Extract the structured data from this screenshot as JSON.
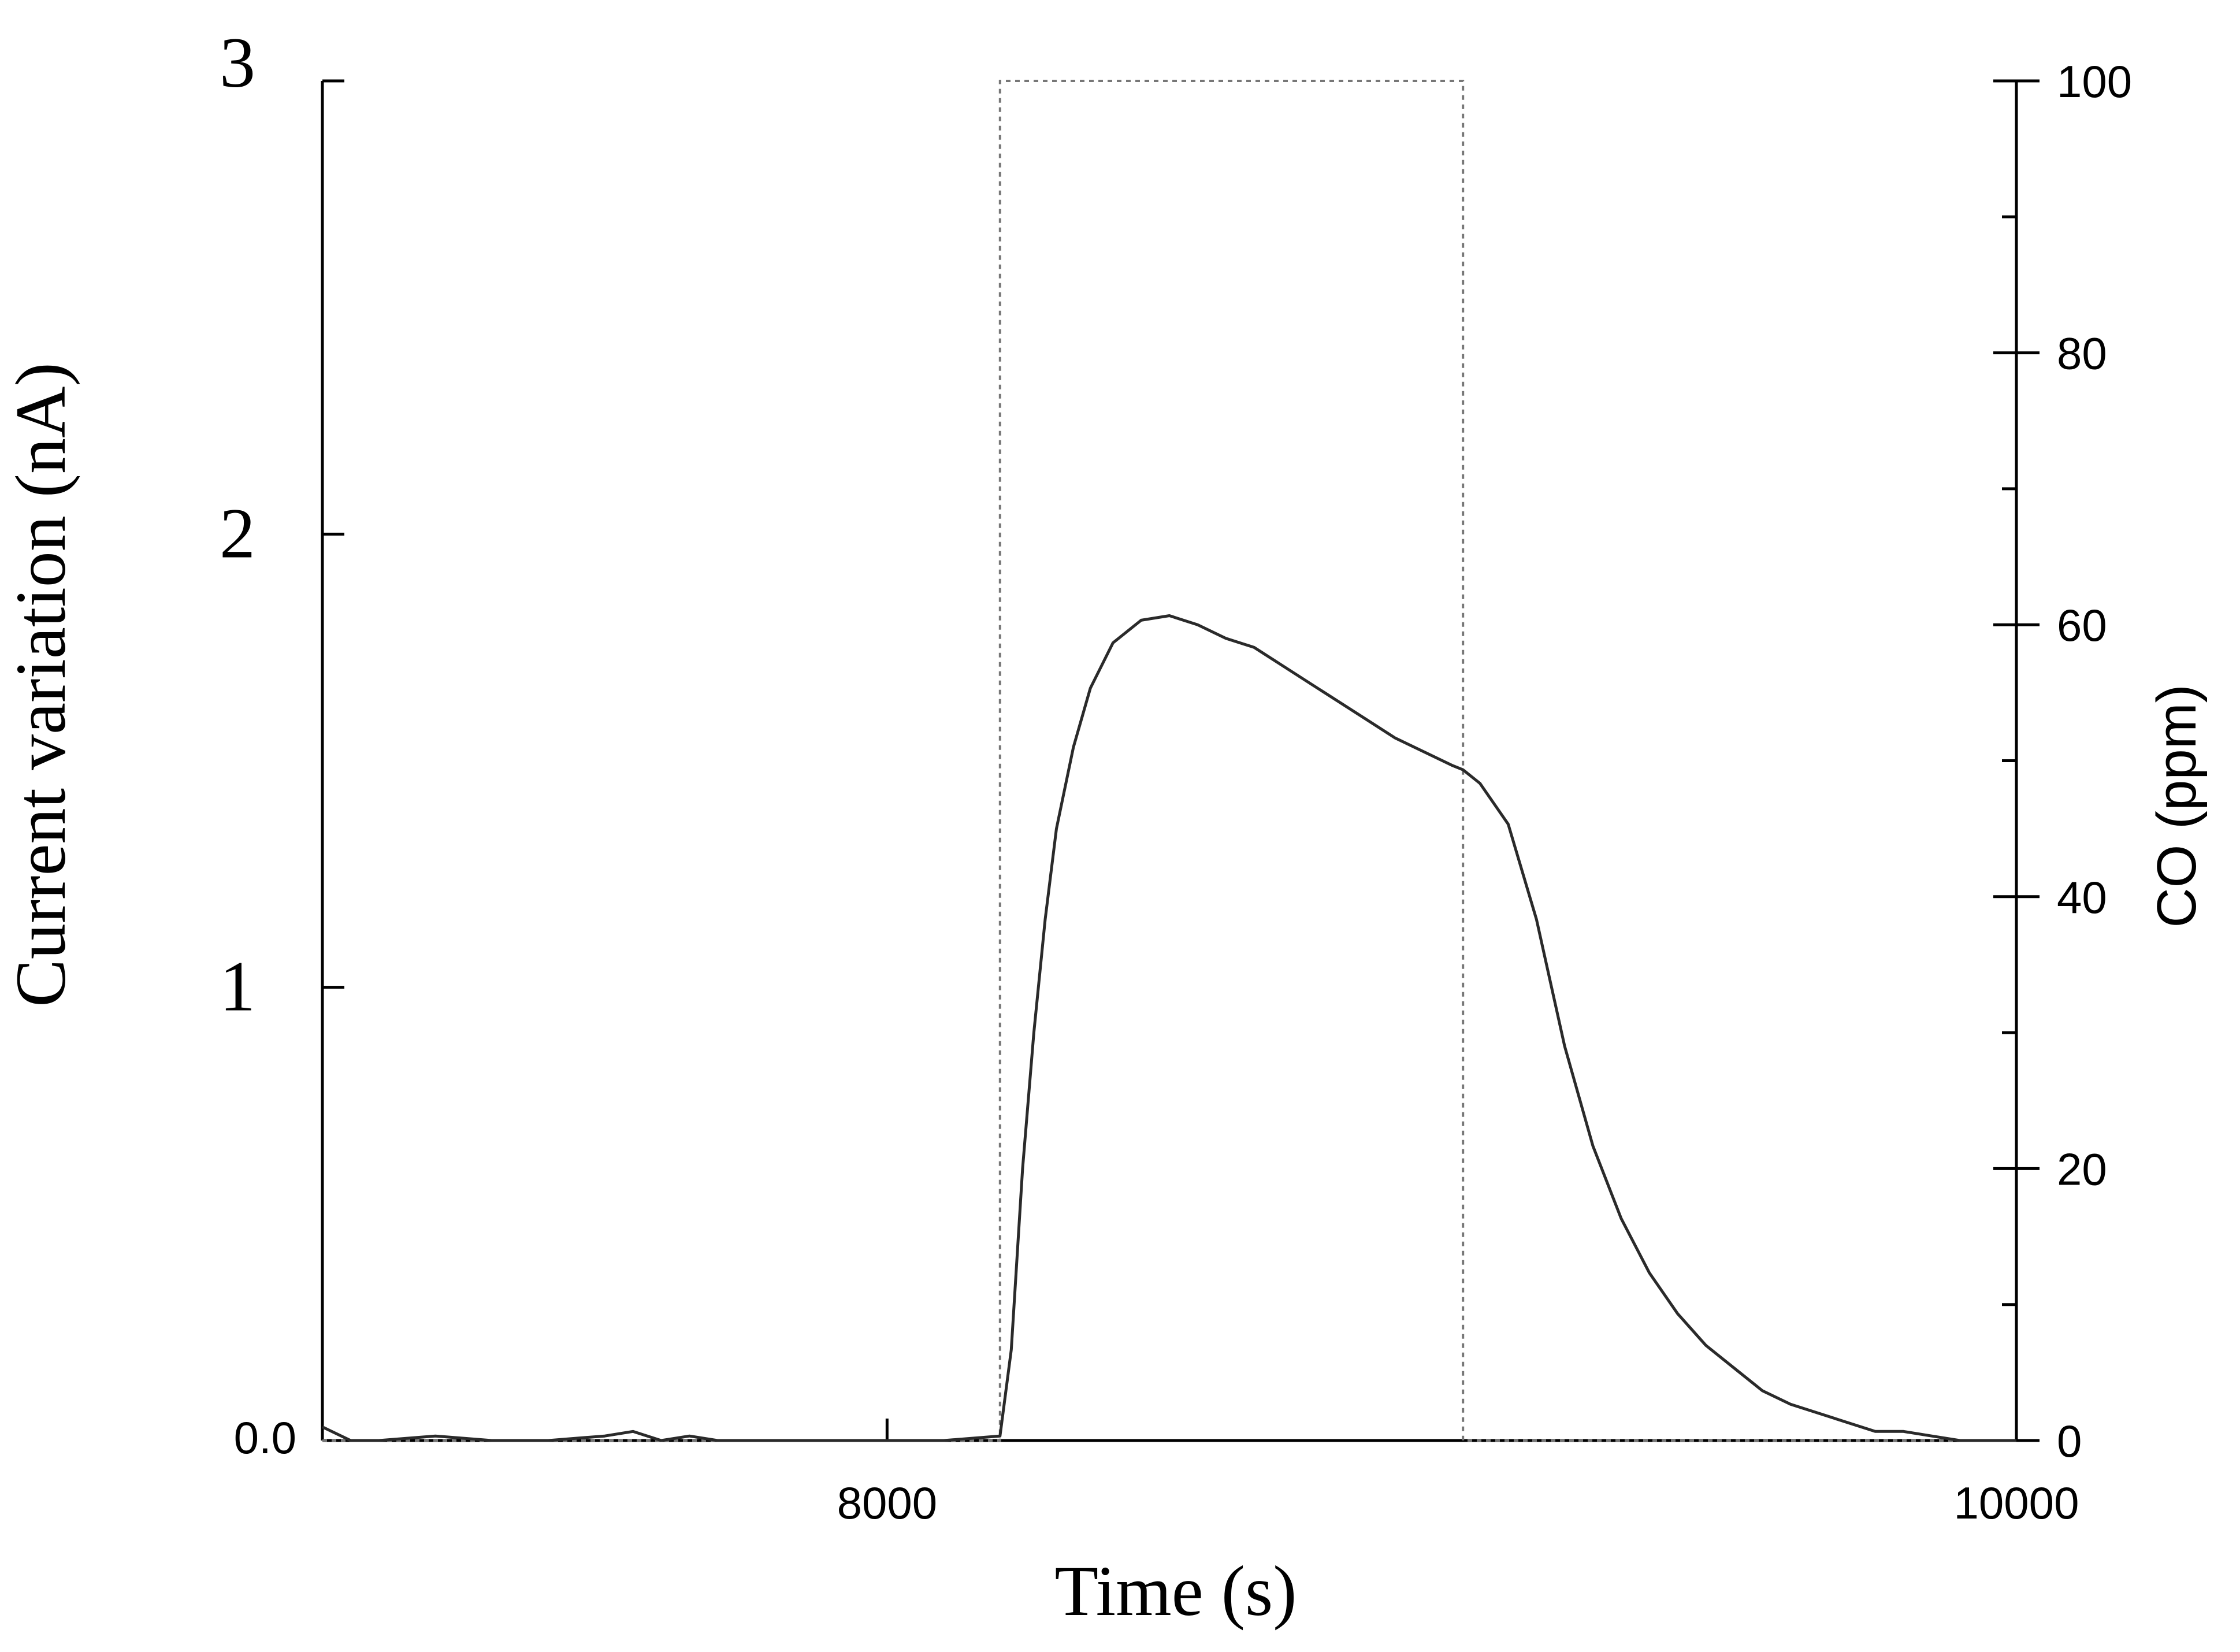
{
  "chart_data": {
    "type": "line",
    "title": "",
    "xlabel": "Time (s)",
    "ylabel_left": "Current variation (nA)",
    "ylabel_right": "CO (ppm)",
    "xlim": [
      7000,
      10000
    ],
    "ylim_left": [
      0,
      3
    ],
    "ylim_right": [
      0,
      100
    ],
    "x_ticks": [
      8000,
      10000
    ],
    "x_tick_labels": [
      "8000",
      "10000"
    ],
    "left_ticks": [
      0,
      1,
      2,
      3
    ],
    "left_tick_labels": [
      "0.0",
      "1",
      "2",
      "3"
    ],
    "right_major_ticks": [
      0,
      20,
      40,
      60,
      80,
      100
    ],
    "right_tick_labels": [
      "0",
      "20",
      "40",
      "60",
      "80",
      "100"
    ],
    "right_minor_ticks": [
      10,
      30,
      50,
      70,
      90
    ],
    "grid": false,
    "legend": "none",
    "series": [
      {
        "axis": "left",
        "style": "solid",
        "color": "#2a2a2a",
        "x": [
          7000,
          7050,
          7100,
          7200,
          7300,
          7400,
          7500,
          7550,
          7600,
          7650,
          7700,
          7800,
          7900,
          8000,
          8100,
          8200,
          8220,
          8240,
          8260,
          8280,
          8300,
          8330,
          8360,
          8400,
          8450,
          8500,
          8550,
          8600,
          8650,
          8700,
          8750,
          8800,
          8850,
          8900,
          8950,
          9000,
          9020,
          9050,
          9100,
          9150,
          9200,
          9250,
          9300,
          9350,
          9400,
          9450,
          9500,
          9550,
          9600,
          9650,
          9700,
          9750,
          9800,
          9850,
          9900,
          9950,
          10000
        ],
        "y": [
          0.03,
          0.0,
          0.0,
          0.01,
          0.0,
          0.0,
          0.01,
          0.02,
          0.0,
          0.01,
          0.0,
          0.0,
          0.0,
          0.0,
          0.0,
          0.01,
          0.2,
          0.6,
          0.9,
          1.15,
          1.35,
          1.53,
          1.66,
          1.76,
          1.81,
          1.82,
          1.8,
          1.77,
          1.75,
          1.71,
          1.67,
          1.63,
          1.59,
          1.55,
          1.52,
          1.49,
          1.48,
          1.45,
          1.36,
          1.15,
          0.87,
          0.65,
          0.49,
          0.37,
          0.28,
          0.21,
          0.16,
          0.11,
          0.08,
          0.06,
          0.04,
          0.02,
          0.02,
          0.01,
          0.0,
          0.0,
          0.0
        ]
      },
      {
        "axis": "right",
        "style": "dotted",
        "color": "#777777",
        "x": [
          7000,
          8200,
          8200,
          9020,
          9020,
          10000
        ],
        "y": [
          0,
          0,
          100,
          100,
          0,
          0
        ]
      }
    ]
  }
}
